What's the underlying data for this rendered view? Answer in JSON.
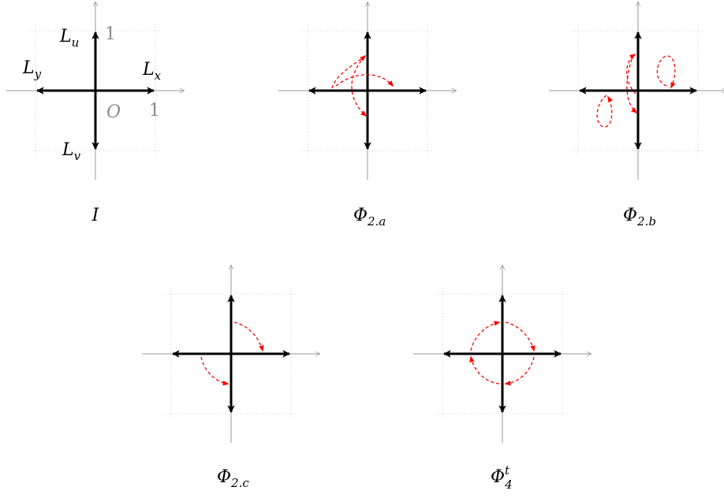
{
  "panels": [
    {
      "id": "I",
      "caption": {
        "main": "I",
        "sub": "",
        "sup": ""
      }
    },
    {
      "id": "phi2a",
      "caption": {
        "main": "Φ",
        "sub": "2.a",
        "sup": ""
      }
    },
    {
      "id": "phi2b",
      "caption": {
        "main": "Φ",
        "sub": "2.b",
        "sup": ""
      }
    },
    {
      "id": "phi2c",
      "caption": {
        "main": "Φ",
        "sub": "2.c",
        "sup": ""
      }
    },
    {
      "id": "phi4t",
      "caption": {
        "main": "Φ",
        "sub": "4",
        "sup": "t"
      }
    }
  ],
  "labels": {
    "Lu": {
      "main": "L",
      "sub": "u"
    },
    "Ly": {
      "main": "L",
      "sub": "y"
    },
    "Lx": {
      "main": "L",
      "sub": "x"
    },
    "Lv": {
      "main": "L",
      "sub": "v"
    },
    "origin": "O",
    "one_y": "1",
    "one_x": "1"
  },
  "colors": {
    "axis": "#9a9a9a",
    "grid": "#cccccc",
    "vector": "#000000",
    "mapping": "#ff0000"
  }
}
